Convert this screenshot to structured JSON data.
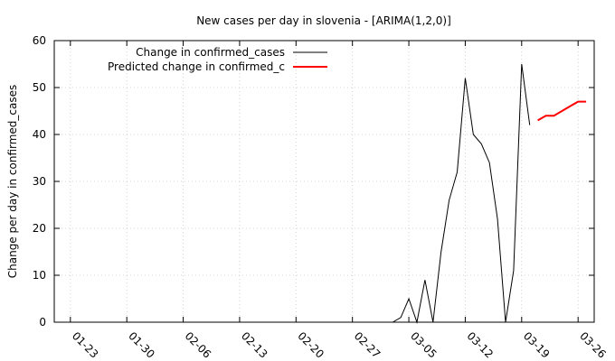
{
  "chart_data": {
    "type": "line",
    "title": "New cases per day in slovenia -  [ARIMA(1,2,0)]",
    "xlabel": "",
    "ylabel": "Change per day in confirmed_cases",
    "x_unit": "date (2020, month-day)",
    "xlim": [
      "01-21",
      "03-28"
    ],
    "ylim": [
      0,
      60
    ],
    "y_ticks": [
      0,
      10,
      20,
      30,
      40,
      50,
      60
    ],
    "x_ticks": [
      "01-23",
      "01-30",
      "02-06",
      "02-13",
      "02-20",
      "02-27",
      "03-05",
      "03-12",
      "03-19",
      "03-26"
    ],
    "grid": true,
    "legend_position": "top-left",
    "series": [
      {
        "name": "Change in confirmed_cases",
        "color": "#000000",
        "points": [
          [
            "01-22",
            0
          ],
          [
            "01-23",
            0
          ],
          [
            "01-24",
            0
          ],
          [
            "01-25",
            0
          ],
          [
            "01-26",
            0
          ],
          [
            "01-27",
            0
          ],
          [
            "01-28",
            0
          ],
          [
            "01-29",
            0
          ],
          [
            "01-30",
            0
          ],
          [
            "01-31",
            0
          ],
          [
            "02-01",
            0
          ],
          [
            "02-02",
            0
          ],
          [
            "02-03",
            0
          ],
          [
            "02-04",
            0
          ],
          [
            "02-05",
            0
          ],
          [
            "02-06",
            0
          ],
          [
            "02-07",
            0
          ],
          [
            "02-08",
            0
          ],
          [
            "02-09",
            0
          ],
          [
            "02-10",
            0
          ],
          [
            "02-11",
            0
          ],
          [
            "02-12",
            0
          ],
          [
            "02-13",
            0
          ],
          [
            "02-14",
            0
          ],
          [
            "02-15",
            0
          ],
          [
            "02-16",
            0
          ],
          [
            "02-17",
            0
          ],
          [
            "02-18",
            0
          ],
          [
            "02-19",
            0
          ],
          [
            "02-20",
            0
          ],
          [
            "02-21",
            0
          ],
          [
            "02-22",
            0
          ],
          [
            "02-23",
            0
          ],
          [
            "02-24",
            0
          ],
          [
            "02-25",
            0
          ],
          [
            "02-26",
            0
          ],
          [
            "02-27",
            0
          ],
          [
            "02-28",
            0
          ],
          [
            "02-29",
            0
          ],
          [
            "03-01",
            0
          ],
          [
            "03-02",
            0
          ],
          [
            "03-03",
            0
          ],
          [
            "03-04",
            1
          ],
          [
            "03-05",
            5
          ],
          [
            "03-06",
            0
          ],
          [
            "03-07",
            9
          ],
          [
            "03-08",
            0
          ],
          [
            "03-09",
            15
          ],
          [
            "03-10",
            26
          ],
          [
            "03-11",
            32
          ],
          [
            "03-12",
            52
          ],
          [
            "03-13",
            40
          ],
          [
            "03-14",
            38
          ],
          [
            "03-15",
            34
          ],
          [
            "03-16",
            22
          ],
          [
            "03-17",
            0
          ],
          [
            "03-18",
            11
          ],
          [
            "03-19",
            55
          ],
          [
            "03-20",
            42
          ]
        ]
      },
      {
        "name": "Predicted change in confirmed_c",
        "color": "#ff0000",
        "points": [
          [
            "03-21",
            43
          ],
          [
            "03-22",
            44
          ],
          [
            "03-23",
            44
          ],
          [
            "03-24",
            45
          ],
          [
            "03-25",
            46
          ],
          [
            "03-26",
            47
          ],
          [
            "03-27",
            47
          ]
        ]
      }
    ]
  }
}
